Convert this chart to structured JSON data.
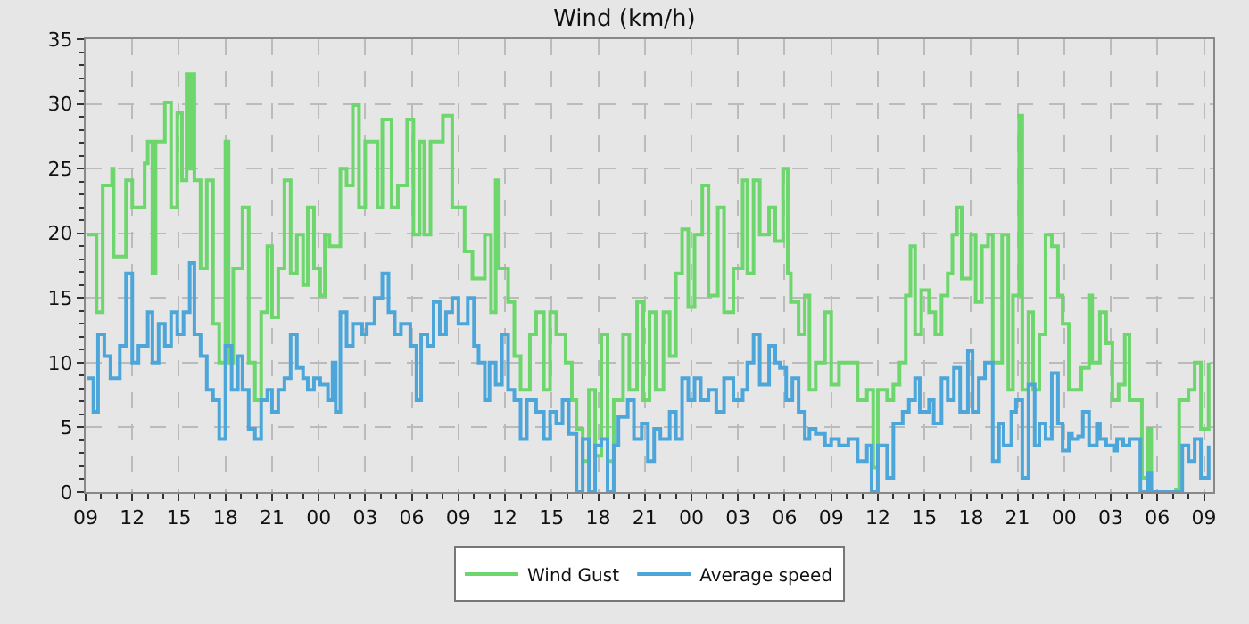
{
  "chart_data": {
    "type": "step",
    "title": "Wind (km/h)",
    "xlim": [
      9,
      81.6
    ],
    "ylim": [
      0,
      35
    ],
    "xticks": [
      {
        "value": 9,
        "label": "09"
      },
      {
        "value": 12,
        "label": "12"
      },
      {
        "value": 15,
        "label": "15"
      },
      {
        "value": 18,
        "label": "18"
      },
      {
        "value": 21,
        "label": "21"
      },
      {
        "value": 24,
        "label": "00"
      },
      {
        "value": 27,
        "label": "03"
      },
      {
        "value": 30,
        "label": "06"
      },
      {
        "value": 33,
        "label": "09"
      },
      {
        "value": 36,
        "label": "12"
      },
      {
        "value": 39,
        "label": "15"
      },
      {
        "value": 42,
        "label": "18"
      },
      {
        "value": 45,
        "label": "21"
      },
      {
        "value": 48,
        "label": "00"
      },
      {
        "value": 51,
        "label": "03"
      },
      {
        "value": 54,
        "label": "06"
      },
      {
        "value": 57,
        "label": "09"
      },
      {
        "value": 60,
        "label": "12"
      },
      {
        "value": 63,
        "label": "15"
      },
      {
        "value": 66,
        "label": "18"
      },
      {
        "value": 69,
        "label": "21"
      },
      {
        "value": 72,
        "label": "00"
      },
      {
        "value": 75,
        "label": "03"
      },
      {
        "value": 78,
        "label": "06"
      },
      {
        "value": 81,
        "label": "09"
      }
    ],
    "yticks": [
      0,
      5,
      10,
      15,
      20,
      25,
      30,
      35
    ],
    "grid": true,
    "legend": "bottom",
    "line_style": "solid",
    "series": [
      {
        "name": "Wind Gust",
        "color": "#6dd66d",
        "x": [
          9.1,
          9.7,
          10.1,
          10.7,
          10.8,
          11.6,
          12,
          12.8,
          13,
          13.3,
          13.5,
          14.1,
          14.5,
          14.9,
          15.2,
          15.5,
          15.6,
          15.8,
          16,
          16.4,
          16.8,
          17.2,
          17.6,
          18,
          18.2,
          18.5,
          19.1,
          19.5,
          19.9,
          20.3,
          20.7,
          21,
          21.4,
          21.8,
          22.2,
          22.6,
          23,
          23.3,
          23.7,
          24.1,
          24.4,
          24.7,
          25.1,
          25.4,
          25.8,
          26.2,
          26.6,
          27,
          27.6,
          27.8,
          28.1,
          28.7,
          29.1,
          29.7,
          30.1,
          30.5,
          30.8,
          31.2,
          32,
          32.6,
          33.1,
          33.4,
          33.9,
          34.7,
          35.1,
          35.4,
          35.6,
          36.2,
          36.6,
          37,
          37.6,
          38,
          38.5,
          38.9,
          39.3,
          39.9,
          40.3,
          40.6,
          41,
          41.4,
          41.8,
          42.2,
          42.6,
          43,
          43.6,
          44,
          44.5,
          44.9,
          45.3,
          45.7,
          46.2,
          46.6,
          47,
          47.4,
          47.8,
          48.2,
          48.7,
          49.1,
          49.7,
          50.1,
          50.7,
          51.3,
          51.6,
          52,
          52.4,
          53,
          53.4,
          53.9,
          54.2,
          54.4,
          54.9,
          55.3,
          55.6,
          56,
          56.6,
          57,
          57.5,
          58.1,
          58.7,
          59.3,
          59.7,
          60,
          60.6,
          61,
          61.4,
          61.8,
          62.1,
          62.4,
          62.8,
          63.3,
          63.7,
          64.1,
          64.5,
          64.8,
          65.1,
          65.4,
          66,
          66.3,
          66.7,
          67.1,
          67.4,
          68,
          68.4,
          68.7,
          69.1,
          69.3,
          69.7,
          70,
          70.4,
          70.8,
          71.2,
          71.6,
          71.9,
          72.3,
          73.1,
          73.6,
          73.8,
          74.3,
          74.7,
          75.1,
          75.5,
          75.9,
          76.2,
          76.9,
          77,
          77.4,
          77.6,
          79.2,
          79.4,
          80,
          80.4,
          80.8,
          81.2,
          81.3
        ],
        "values": [
          19.9,
          13.9,
          23.7,
          25,
          18.2,
          24.1,
          22,
          25.4,
          27.1,
          16.9,
          27.1,
          30.1,
          22,
          29.3,
          24.1,
          32.3,
          25,
          32.3,
          24.1,
          17.3,
          24.1,
          13,
          10,
          27.1,
          10,
          17.3,
          22,
          10,
          7.1,
          13.9,
          19,
          13.5,
          17.3,
          24.1,
          16.9,
          19.9,
          16,
          22,
          17.3,
          15.2,
          19.9,
          19,
          19,
          25,
          23.7,
          29.9,
          22,
          27.1,
          27.1,
          22,
          28.8,
          22,
          23.7,
          28.8,
          19.9,
          27.1,
          19.9,
          27.1,
          29.1,
          22,
          22,
          18.6,
          16.5,
          19.9,
          13.9,
          24.1,
          17.3,
          14.7,
          10.5,
          7.9,
          12.2,
          13.9,
          7.9,
          13.9,
          12.2,
          10,
          7.1,
          4.9,
          2.4,
          7.9,
          2.8,
          12.2,
          2.4,
          7.1,
          12.2,
          7.9,
          14.7,
          7.1,
          13.9,
          7.9,
          13.9,
          10.5,
          16.9,
          20.3,
          14.3,
          19.9,
          23.7,
          15.2,
          22,
          13.9,
          17.3,
          24.1,
          16.9,
          24.1,
          19.9,
          22,
          19.4,
          25,
          16.9,
          14.7,
          12.2,
          15.2,
          7.9,
          10,
          13.9,
          8.3,
          10,
          10,
          7.1,
          7.9,
          1.9,
          7.9,
          7.1,
          8.3,
          10,
          15.2,
          19,
          12.2,
          15.6,
          13.9,
          12.2,
          15.2,
          16.9,
          19.9,
          22,
          16.5,
          19.9,
          14.7,
          19,
          19.9,
          10,
          19.9,
          7.9,
          15.2,
          29.1,
          7.9,
          13.9,
          7.9,
          12.2,
          19.9,
          19,
          15.2,
          13,
          7.9,
          9.6,
          15.2,
          10,
          13.9,
          11.5,
          7.1,
          8.3,
          12.2,
          7.1,
          7.1,
          1.1,
          4.9,
          0,
          0.2,
          7.1,
          7.9,
          10,
          4.9,
          4.9,
          10
        ]
      },
      {
        "name": "Average speed",
        "color": "#4da6d9",
        "x": [
          9.1,
          9.5,
          9.8,
          10.2,
          10.6,
          11.2,
          11.6,
          12,
          12.4,
          13,
          13.3,
          13.7,
          14.1,
          14.5,
          14.9,
          15.3,
          15.7,
          16,
          16.4,
          16.8,
          17.2,
          17.6,
          18,
          18.4,
          18.8,
          19.1,
          19.5,
          19.9,
          20.3,
          20.7,
          21,
          21.4,
          21.8,
          22.2,
          22.6,
          23,
          23.3,
          23.7,
          24.1,
          24.6,
          24.9,
          25.1,
          25.4,
          25.8,
          26.2,
          26.8,
          27.1,
          27.6,
          28.1,
          28.5,
          28.9,
          29.3,
          29.9,
          30.3,
          30.6,
          31,
          31.4,
          31.8,
          32.2,
          32.6,
          33,
          33.6,
          34,
          34.3,
          34.7,
          35,
          35.4,
          35.8,
          36.2,
          36.6,
          37,
          37.4,
          38,
          38.5,
          38.9,
          39.3,
          39.7,
          40.1,
          40.6,
          41,
          41.4,
          41.8,
          42.2,
          42.6,
          43,
          43.3,
          43.9,
          44.3,
          44.8,
          45.2,
          45.6,
          46,
          46.6,
          47,
          47.4,
          47.8,
          48.2,
          48.6,
          49.1,
          49.6,
          50.1,
          50.7,
          51.3,
          51.6,
          52,
          52.4,
          53,
          53.4,
          53.7,
          54.1,
          54.5,
          54.9,
          55.3,
          55.6,
          56,
          56.6,
          57,
          57.5,
          58.1,
          58.7,
          59.3,
          59.6,
          60,
          60.6,
          61,
          61.6,
          62,
          62.4,
          62.7,
          63.3,
          63.6,
          64.1,
          64.5,
          64.9,
          65.3,
          65.8,
          66.1,
          66.5,
          66.9,
          67.4,
          67.8,
          68.1,
          68.6,
          68.9,
          69.3,
          69.7,
          70.1,
          70.4,
          70.8,
          71.2,
          71.6,
          71.9,
          72.3,
          72.5,
          72.9,
          73.2,
          73.6,
          74.1,
          74.3,
          74.7,
          75.2,
          75.4,
          75.8,
          76.2,
          76.9,
          77.4,
          77.6,
          79.2,
          79.6,
          80,
          80.4,
          80.8,
          81.3
        ],
        "values": [
          8.8,
          6.2,
          12.2,
          10.5,
          8.8,
          11.3,
          16.9,
          10,
          11.3,
          13.9,
          10,
          13,
          11.3,
          13.9,
          12.2,
          13.9,
          17.7,
          12.2,
          10.5,
          7.9,
          7.1,
          4.1,
          11.3,
          7.9,
          10.5,
          7.9,
          4.9,
          4.1,
          7.1,
          7.9,
          6.2,
          7.9,
          8.8,
          12.2,
          9.6,
          8.8,
          7.9,
          8.8,
          8.3,
          7.1,
          10,
          6.2,
          13.9,
          11.3,
          13,
          12.2,
          13,
          15,
          16.9,
          13.9,
          12.2,
          13,
          11.3,
          7.1,
          12.2,
          11.3,
          14.7,
          12.2,
          13.9,
          15,
          13,
          15,
          11.3,
          10,
          7.1,
          10,
          8.3,
          12.2,
          7.9,
          7.1,
          4.1,
          7.1,
          6.2,
          4.1,
          6.2,
          5.3,
          7.1,
          4.5,
          0,
          4.1,
          0,
          3.6,
          4.1,
          0,
          3.6,
          5.8,
          7.1,
          4.1,
          5.3,
          2.4,
          4.9,
          4.1,
          6.2,
          4.1,
          8.8,
          7.1,
          8.8,
          7.1,
          7.9,
          6.2,
          8.8,
          7.1,
          7.9,
          10,
          12.2,
          8.3,
          11.3,
          10,
          9.6,
          7.1,
          8.8,
          6.2,
          4.1,
          4.9,
          4.5,
          3.6,
          4.1,
          3.6,
          4.1,
          2.4,
          3.6,
          0,
          3.6,
          1.1,
          5.3,
          6.2,
          7.1,
          8.8,
          6.2,
          7.1,
          5.3,
          8.8,
          7.1,
          9.6,
          6.2,
          10.9,
          6.2,
          8.8,
          10,
          2.4,
          5.3,
          3.6,
          6.2,
          7.1,
          1.1,
          8.3,
          3.6,
          5.3,
          4.1,
          9.2,
          5.3,
          3.2,
          4.5,
          4.1,
          4.3,
          6.2,
          3.6,
          5.3,
          4.1,
          3.6,
          3.2,
          4.1,
          3.6,
          4.1,
          0,
          1.5,
          0,
          0,
          3.6,
          2.4,
          4.1,
          1.1,
          3.6
        ]
      }
    ]
  }
}
